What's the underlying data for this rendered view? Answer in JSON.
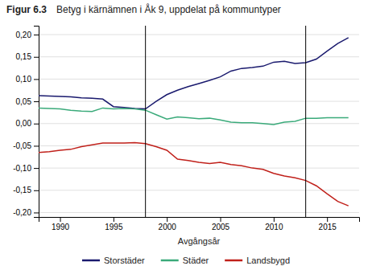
{
  "chart_data": {
    "type": "line",
    "title": "Figur 6.3",
    "subtitle": "Betyg i kärnämnen i Åk 9, uppdelat på kommuntyper",
    "xlabel": "Avgångsår",
    "x": [
      1988,
      1989,
      1990,
      1991,
      1992,
      1993,
      1994,
      1995,
      1996,
      1997,
      1998,
      1999,
      2000,
      2001,
      2002,
      2003,
      2004,
      2005,
      2006,
      2007,
      2008,
      2009,
      2010,
      2011,
      2012,
      2013,
      2014,
      2015,
      2016,
      2017
    ],
    "series": [
      {
        "name": "Storstäder",
        "color": "#1a1a6e",
        "values": [
          0.063,
          0.062,
          0.061,
          0.06,
          0.058,
          0.057,
          0.055,
          0.038,
          0.036,
          0.034,
          0.033,
          0.05,
          0.065,
          0.075,
          0.083,
          0.09,
          0.097,
          0.105,
          0.118,
          0.124,
          0.126,
          0.129,
          0.138,
          0.14,
          0.135,
          0.137,
          0.145,
          0.163,
          0.18,
          0.193
        ]
      },
      {
        "name": "Städer",
        "color": "#3aaa7a",
        "values": [
          0.035,
          0.034,
          0.033,
          0.03,
          0.028,
          0.027,
          0.035,
          0.033,
          0.034,
          0.033,
          0.03,
          0.02,
          0.01,
          0.015,
          0.013,
          0.011,
          0.012,
          0.008,
          0.003,
          0.002,
          0.002,
          0.0,
          -0.002,
          0.003,
          0.005,
          0.012,
          0.012,
          0.013,
          0.013,
          0.013
        ]
      },
      {
        "name": "Landsbygd",
        "color": "#c0201a",
        "values": [
          -0.065,
          -0.063,
          -0.06,
          -0.058,
          -0.052,
          -0.048,
          -0.044,
          -0.044,
          -0.044,
          -0.043,
          -0.045,
          -0.052,
          -0.06,
          -0.08,
          -0.083,
          -0.087,
          -0.09,
          -0.087,
          -0.092,
          -0.095,
          -0.1,
          -0.103,
          -0.112,
          -0.118,
          -0.122,
          -0.128,
          -0.14,
          -0.158,
          -0.175,
          -0.185
        ]
      }
    ],
    "vlines": [
      1998,
      2013
    ],
    "xlim": [
      1988,
      2018
    ],
    "xticks": [
      1990,
      1995,
      2000,
      2005,
      2010,
      2015
    ],
    "ylim": [
      -0.21,
      0.22
    ],
    "yticks": [
      {
        "value": -0.2,
        "label": "-0,20"
      },
      {
        "value": -0.15,
        "label": "-0,15"
      },
      {
        "value": -0.1,
        "label": "-0,10"
      },
      {
        "value": -0.05,
        "label": "-0,05"
      },
      {
        "value": 0.0,
        "label": "0,00"
      },
      {
        "value": 0.05,
        "label": "0,05"
      },
      {
        "value": 0.1,
        "label": "0,10"
      },
      {
        "value": 0.15,
        "label": "0,15"
      },
      {
        "value": 0.2,
        "label": "0,20"
      }
    ],
    "grid": true,
    "legend": "bottom"
  }
}
